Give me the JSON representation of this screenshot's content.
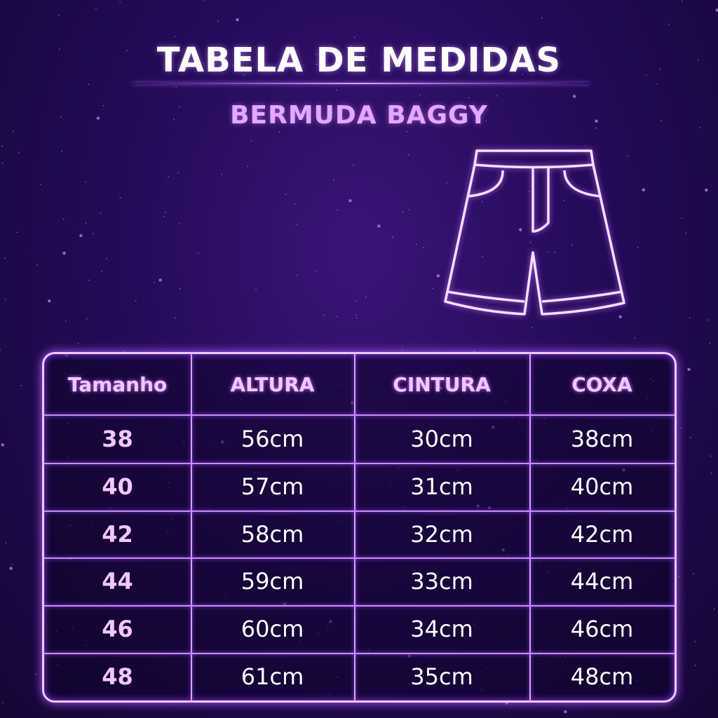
{
  "title": "TABELA DE MEDIDAS",
  "subtitle": "BERMUDA BAGGY",
  "illustration": "shorts-icon",
  "colors": {
    "accent": "#e3a8ff",
    "background": "#250b5a",
    "line": "#f0c9ff"
  },
  "table": {
    "headers": [
      "Tamanho",
      "ALTURA",
      "CINTURA",
      "COXA"
    ],
    "rows": [
      [
        "38",
        "56cm",
        "30cm",
        "38cm"
      ],
      [
        "40",
        "57cm",
        "31cm",
        "40cm"
      ],
      [
        "42",
        "58cm",
        "32cm",
        "42cm"
      ],
      [
        "44",
        "59cm",
        "33cm",
        "44cm"
      ],
      [
        "46",
        "60cm",
        "34cm",
        "46cm"
      ],
      [
        "48",
        "61cm",
        "35cm",
        "48cm"
      ]
    ]
  }
}
